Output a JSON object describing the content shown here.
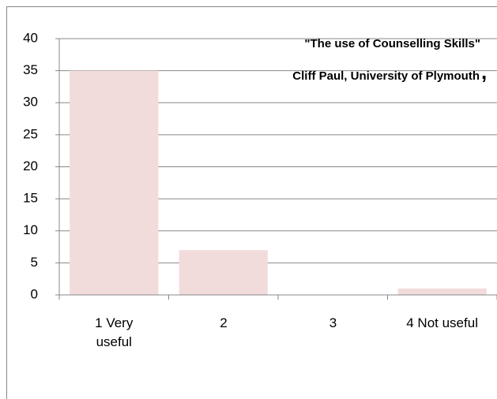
{
  "chart_data": {
    "type": "bar",
    "annotations": [
      "\"The use of Counselling Skills\"",
      "Cliff Paul, University of Plymouth",
      ","
    ],
    "categories": [
      "1 Very useful",
      "2",
      "3",
      "4  Not useful"
    ],
    "values": [
      35,
      7,
      0,
      1
    ],
    "color": "#f2dcdb",
    "ylim": [
      0,
      40
    ],
    "yticks": [
      0,
      5,
      10,
      15,
      20,
      25,
      30,
      35,
      40
    ],
    "grid": true
  }
}
